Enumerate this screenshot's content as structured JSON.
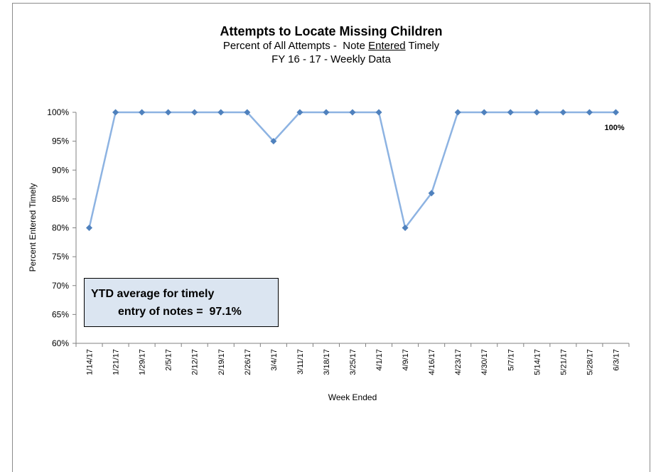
{
  "chart_data": {
    "type": "line",
    "title": "Attempts to Locate Missing Children",
    "subtitle": {
      "prefix": "Percent of All Attempts -  Note ",
      "underlined": "Entered",
      "suffix": " Timely"
    },
    "subtitle2": "FY 16 - 17 - Weekly Data",
    "xlabel": "Week Ended",
    "ylabel": "Percent Entered Timely",
    "ylim": [
      60,
      100
    ],
    "yticks": [
      "60%",
      "65%",
      "70%",
      "75%",
      "80%",
      "85%",
      "90%",
      "95%",
      "100%"
    ],
    "categories": [
      "1/14/17",
      "1/21/17",
      "1/29/17",
      "2/5/17",
      "2/12/17",
      "2/19/17",
      "2/26/17",
      "3/4/17",
      "3/11/17",
      "3/18/17",
      "3/25/17",
      "4/1/17",
      "4/9/17",
      "4/16/17",
      "4/23/17",
      "4/30/17",
      "5/7/17",
      "5/14/17",
      "5/21/17",
      "5/28/17",
      "6/3/17"
    ],
    "series": [
      {
        "values": [
          80,
          100,
          100,
          100,
          100,
          100,
          100,
          95,
          100,
          100,
          100,
          100,
          80,
          86,
          100,
          100,
          100,
          100,
          100,
          100,
          100
        ],
        "color": "#8db3e2",
        "marker_color": "#4f81bd"
      }
    ],
    "end_label": "100%",
    "grid": false,
    "annotation": {
      "line1": "YTD average for timely",
      "line2": "entry of notes =  97.1%"
    }
  }
}
